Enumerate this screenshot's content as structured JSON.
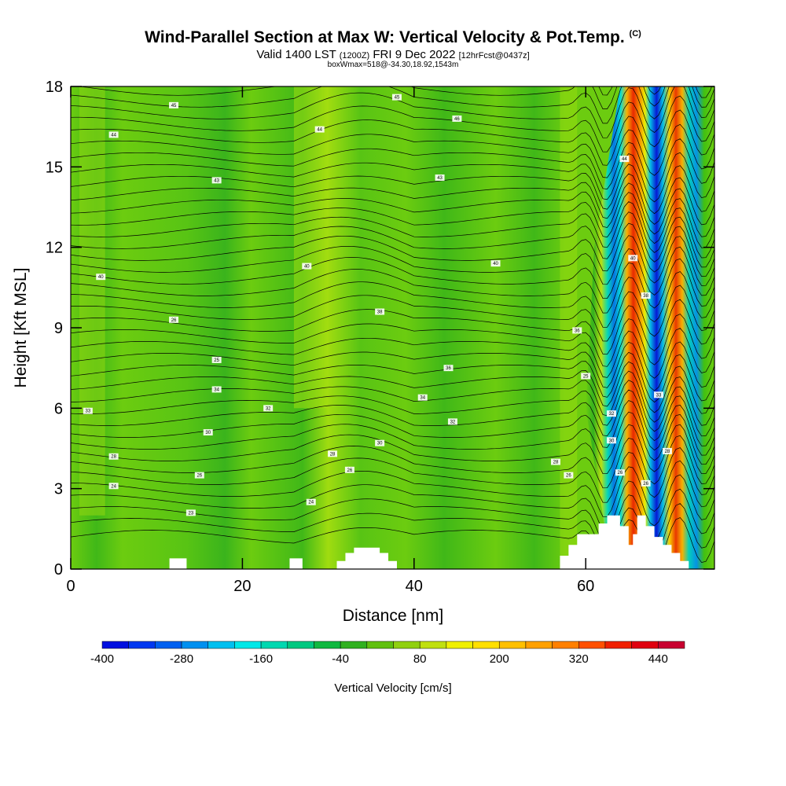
{
  "header": {
    "title": "Wind-Parallel Section at Max W: Vertical Velocity & Pot.Temp.",
    "copyright": "(C)",
    "valid_prefix": "Valid 1400 LST",
    "valid_z": "(1200Z)",
    "valid_date": "FRI 9 Dec 2022",
    "valid_fcst": "[12hrFcst@0437z]",
    "box_line": "boxWmax=518@-34.30,18.92,1543m"
  },
  "chart_data": {
    "type": "heatmap",
    "xlabel": "Distance [nm]",
    "ylabel": "Height [Kft MSL]",
    "xlim": [
      0,
      75
    ],
    "ylim": [
      0,
      18
    ],
    "x_ticks": [
      "0",
      "20",
      "40",
      "60"
    ],
    "y_ticks": [
      "0",
      "3",
      "6",
      "9",
      "12",
      "15",
      "18"
    ],
    "colorbar": {
      "label": "Vertical Velocity [cm/s]",
      "tick_labels": [
        "-400",
        "-280",
        "-160",
        "-40",
        "80",
        "200",
        "320",
        "440"
      ],
      "colors": [
        "#0010e0",
        "#0038f0",
        "#0060f0",
        "#0090f0",
        "#00c0f0",
        "#00e8e8",
        "#00d8b0",
        "#00c880",
        "#10b840",
        "#30b020",
        "#60c010",
        "#90d010",
        "#c0e010",
        "#f0f000",
        "#ffe000",
        "#ffc000",
        "#ffa000",
        "#ff8000",
        "#ff5000",
        "#f02000",
        "#e00010",
        "#c80030"
      ]
    },
    "updraft_downdraft_bands": [
      {
        "x": 62.5,
        "w_cm_s": -300
      },
      {
        "x": 64.5,
        "w_cm_s": 450
      },
      {
        "x": 66.0,
        "w_cm_s": -400
      },
      {
        "x": 67.5,
        "w_cm_s": 400
      },
      {
        "x": 69.0,
        "w_cm_s": -200
      }
    ],
    "theta_labels": [
      {
        "x": 12,
        "y": 17.3,
        "text": "45"
      },
      {
        "x": 5,
        "y": 16.2,
        "text": "44"
      },
      {
        "x": 29,
        "y": 16.4,
        "text": "44"
      },
      {
        "x": 38,
        "y": 17.6,
        "text": "45"
      },
      {
        "x": 45,
        "y": 16.8,
        "text": "46"
      },
      {
        "x": 17,
        "y": 14.5,
        "text": "43"
      },
      {
        "x": 43,
        "y": 14.6,
        "text": "43"
      },
      {
        "x": 64.5,
        "y": 15.3,
        "text": "44"
      },
      {
        "x": 3.5,
        "y": 10.9,
        "text": "40"
      },
      {
        "x": 27.5,
        "y": 11.3,
        "text": "40"
      },
      {
        "x": 49.5,
        "y": 11.4,
        "text": "40"
      },
      {
        "x": 65.5,
        "y": 11.6,
        "text": "40"
      },
      {
        "x": 12,
        "y": 9.3,
        "text": "26"
      },
      {
        "x": 36,
        "y": 9.6,
        "text": "38"
      },
      {
        "x": 67,
        "y": 10.2,
        "text": "38"
      },
      {
        "x": 59,
        "y": 8.9,
        "text": "36"
      },
      {
        "x": 17,
        "y": 7.8,
        "text": "25"
      },
      {
        "x": 44,
        "y": 7.5,
        "text": "36"
      },
      {
        "x": 60,
        "y": 7.2,
        "text": "25"
      },
      {
        "x": 17,
        "y": 6.7,
        "text": "34"
      },
      {
        "x": 41,
        "y": 6.4,
        "text": "34"
      },
      {
        "x": 2,
        "y": 5.9,
        "text": "33"
      },
      {
        "x": 23,
        "y": 6.0,
        "text": "32"
      },
      {
        "x": 44.5,
        "y": 5.5,
        "text": "32"
      },
      {
        "x": 63,
        "y": 5.8,
        "text": "32"
      },
      {
        "x": 68.5,
        "y": 6.5,
        "text": "33"
      },
      {
        "x": 16,
        "y": 5.1,
        "text": "30"
      },
      {
        "x": 36,
        "y": 4.7,
        "text": "30"
      },
      {
        "x": 63,
        "y": 4.8,
        "text": "30"
      },
      {
        "x": 5,
        "y": 4.2,
        "text": "28"
      },
      {
        "x": 30.5,
        "y": 4.3,
        "text": "28"
      },
      {
        "x": 56.5,
        "y": 4.0,
        "text": "28"
      },
      {
        "x": 69.5,
        "y": 4.4,
        "text": "28"
      },
      {
        "x": 15,
        "y": 3.5,
        "text": "26"
      },
      {
        "x": 32.5,
        "y": 3.7,
        "text": "26"
      },
      {
        "x": 58,
        "y": 3.5,
        "text": "26"
      },
      {
        "x": 64,
        "y": 3.6,
        "text": "26"
      },
      {
        "x": 67,
        "y": 3.2,
        "text": "26"
      },
      {
        "x": 5,
        "y": 3.1,
        "text": "24"
      },
      {
        "x": 28,
        "y": 2.5,
        "text": "24"
      },
      {
        "x": 14,
        "y": 2.1,
        "text": "23"
      }
    ],
    "terrain_profile": [
      [
        0,
        0
      ],
      [
        11.5,
        0
      ],
      [
        11.5,
        0.4
      ],
      [
        13.5,
        0.4
      ],
      [
        13.5,
        0
      ],
      [
        25.5,
        0
      ],
      [
        25.5,
        0.4
      ],
      [
        27,
        0.4
      ],
      [
        27,
        0
      ],
      [
        31,
        0
      ],
      [
        31,
        0.3
      ],
      [
        32,
        0.3
      ],
      [
        32,
        0.6
      ],
      [
        33,
        0.6
      ],
      [
        33,
        0.8
      ],
      [
        36,
        0.8
      ],
      [
        36,
        0.6
      ],
      [
        37,
        0.6
      ],
      [
        37,
        0.3
      ],
      [
        38,
        0.3
      ],
      [
        38,
        0
      ],
      [
        57,
        0
      ],
      [
        57,
        0.5
      ],
      [
        58,
        0.5
      ],
      [
        58,
        0.9
      ],
      [
        59,
        0.9
      ],
      [
        59,
        1.3
      ],
      [
        61.5,
        1.3
      ],
      [
        61.5,
        1.7
      ],
      [
        62.5,
        1.7
      ],
      [
        62.5,
        2.0
      ],
      [
        64,
        2.0
      ],
      [
        64,
        1.6
      ],
      [
        65,
        1.6
      ],
      [
        65,
        0.9
      ],
      [
        65.5,
        0.9
      ],
      [
        65.5,
        1.3
      ],
      [
        66,
        1.3
      ],
      [
        66,
        2.0
      ],
      [
        67,
        2.0
      ],
      [
        67,
        1.6
      ],
      [
        68,
        1.6
      ],
      [
        68,
        1.2
      ],
      [
        69,
        1.2
      ],
      [
        69,
        0.9
      ],
      [
        70,
        0.9
      ],
      [
        70,
        0.6
      ],
      [
        71,
        0.6
      ],
      [
        71,
        0.3
      ],
      [
        72,
        0.3
      ],
      [
        72,
        0
      ],
      [
        75,
        0
      ]
    ]
  }
}
